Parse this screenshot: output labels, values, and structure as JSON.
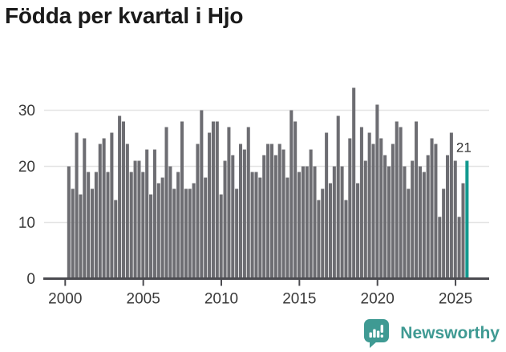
{
  "chart_data": {
    "type": "bar",
    "title": "Födda per kvartal i Hjo",
    "frequency": "quarterly",
    "start": "2000 Q1",
    "end": "2025 Q3",
    "values": [
      20,
      16,
      26,
      15,
      25,
      19,
      16,
      19,
      24,
      25,
      19,
      26,
      14,
      29,
      28,
      24,
      19,
      21,
      21,
      19,
      23,
      15,
      23,
      17,
      18,
      27,
      20,
      16,
      19,
      28,
      16,
      16,
      17,
      24,
      30,
      18,
      26,
      28,
      28,
      15,
      21,
      27,
      22,
      16,
      24,
      23,
      27,
      19,
      19,
      18,
      22,
      24,
      24,
      22,
      24,
      23,
      18,
      30,
      28,
      19,
      20,
      20,
      23,
      20,
      14,
      16,
      26,
      17,
      20,
      29,
      20,
      14,
      25,
      34,
      17,
      27,
      21,
      26,
      24,
      31,
      25,
      22,
      20,
      24,
      28,
      27,
      20,
      16,
      21,
      28,
      20,
      19,
      22,
      25,
      24,
      11,
      16,
      22,
      26,
      21,
      11,
      17,
      21
    ],
    "x_tick_labels": [
      "2000",
      "2005",
      "2010",
      "2015",
      "2020",
      "2025"
    ],
    "y_tick_labels": [
      "0",
      "10",
      "20",
      "30"
    ],
    "ylim": [
      0,
      35
    ],
    "grid": "horizontal",
    "legend": "none",
    "bar_color": "#6d6d72",
    "highlight_color": "#12998f",
    "highlight_index": 102,
    "annotation": {
      "text": "21",
      "target": "last-bar"
    },
    "axis_color": "#4b4b50",
    "gridline_color": "#e4e4e4",
    "tick_label_color": "#3a3a3a",
    "annotation_color": "#333333"
  },
  "branding": {
    "logo_text": "Newsworthy",
    "logo_color": "#3f9a93",
    "logo_icon": "newsworthy-speech-bubble-bar-chart"
  }
}
